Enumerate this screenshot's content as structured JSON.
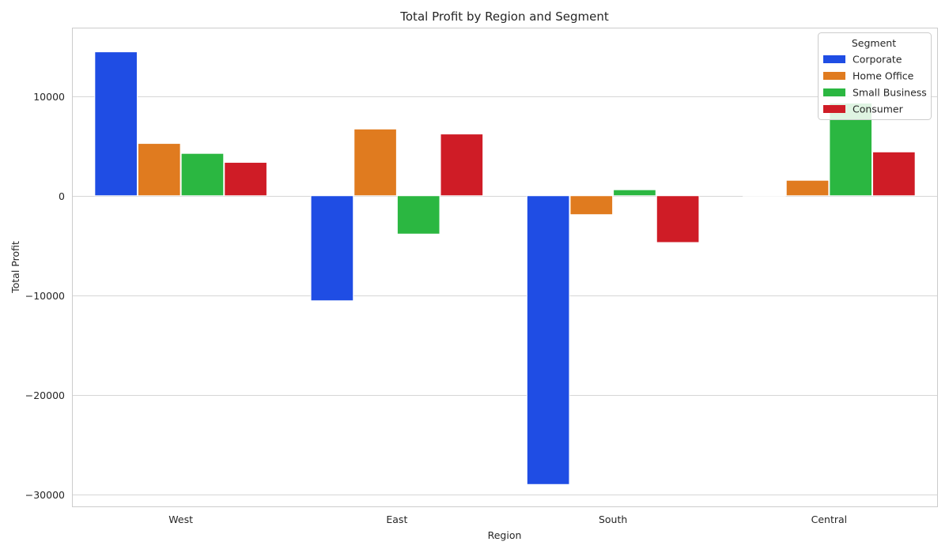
{
  "chart_data": {
    "type": "bar",
    "title": "Total Profit by Region and Segment",
    "xlabel": "Region",
    "ylabel": "Total Profit",
    "categories": [
      "West",
      "East",
      "South",
      "Central"
    ],
    "series": [
      {
        "name": "Corporate",
        "color": "#1f4de4",
        "values": [
          14450,
          -10550,
          -29000,
          0
        ]
      },
      {
        "name": "Home Office",
        "color": "#e07b1f",
        "values": [
          5250,
          6700,
          -1900,
          1550
        ]
      },
      {
        "name": "Small Business",
        "color": "#2bb741",
        "values": [
          4250,
          -3850,
          600,
          9300
        ]
      },
      {
        "name": "Consumer",
        "color": "#cf1c26",
        "values": [
          3350,
          6200,
          -4700,
          4400
        ]
      }
    ],
    "ylim": [
      -31200,
      16800
    ],
    "yticks": [
      10000,
      0,
      -10000,
      -20000,
      -30000
    ],
    "ytick_labels": [
      "10000",
      "0",
      "−10000",
      "−20000",
      "−30000"
    ],
    "legend": {
      "title": "Segment",
      "position": "top-right"
    },
    "grid": true
  }
}
